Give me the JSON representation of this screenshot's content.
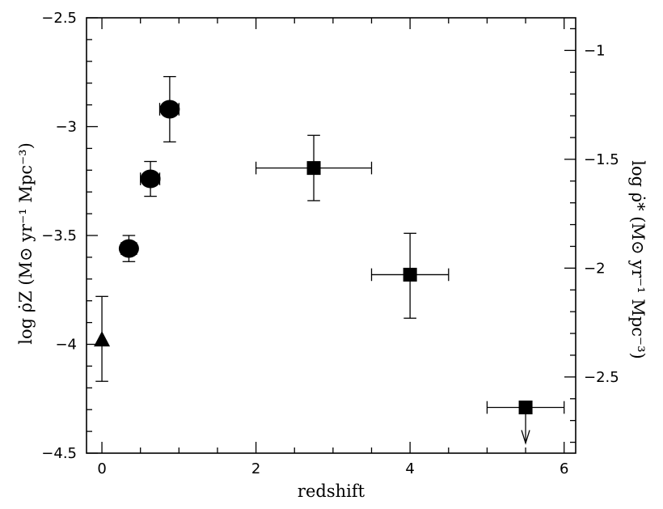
{
  "chart_data": {
    "type": "scatter",
    "xlabel": "redshift",
    "ylabel_left": "log ρ̇Z (M⊙ yr⁻¹ Mpc⁻³)",
    "ylabel_right": "log ρ̇* (M⊙ yr⁻¹ Mpc⁻³)",
    "xlim": [
      -0.2,
      6.15
    ],
    "ylim": [
      -4.5,
      -2.5
    ],
    "right_ylim": [
      -2.85,
      -0.85
    ],
    "x_ticks": [
      0,
      2,
      4,
      6
    ],
    "x_tick_labels": [
      "0",
      "2",
      "4",
      "6"
    ],
    "y_ticks": [
      -4.5,
      -4,
      -3.5,
      -3,
      -2.5
    ],
    "y_tick_labels": [
      "−4.5",
      "−4",
      "−3.5",
      "−3",
      "−2.5"
    ],
    "right_y_ticks": [
      -2.5,
      -2,
      -1.5,
      -1
    ],
    "right_y_tick_labels": [
      "−2.5",
      "−2",
      "−1.5",
      "−1"
    ],
    "grid": false,
    "series": [
      {
        "marker": "triangle",
        "points": [
          {
            "x": 0.0,
            "y": -3.98,
            "yerr_low": -4.17,
            "yerr_high": -3.78
          }
        ]
      },
      {
        "marker": "circle",
        "points": [
          {
            "x": 0.35,
            "y": -3.56,
            "yerr_low": -3.62,
            "yerr_high": -3.5,
            "xerr_low": 0.25,
            "xerr_high": 0.45
          },
          {
            "x": 0.63,
            "y": -3.24,
            "yerr_low": -3.32,
            "yerr_high": -3.16,
            "xerr_low": 0.5,
            "xerr_high": 0.75
          },
          {
            "x": 0.88,
            "y": -2.92,
            "yerr_low": -3.07,
            "yerr_high": -2.77,
            "xerr_low": 0.75,
            "xerr_high": 1.0
          }
        ]
      },
      {
        "marker": "square",
        "points": [
          {
            "x": 2.75,
            "y": -3.19,
            "yerr_low": -3.34,
            "yerr_high": -3.04,
            "xerr_low": 2.0,
            "xerr_high": 3.5
          },
          {
            "x": 4.0,
            "y": -3.68,
            "yerr_low": -3.88,
            "yerr_high": -3.49,
            "xerr_low": 3.5,
            "xerr_high": 4.5
          },
          {
            "x": 5.5,
            "y": -4.29,
            "xerr_low": 5.0,
            "xerr_high": 6.0,
            "upper_limit": true
          }
        ]
      }
    ]
  }
}
